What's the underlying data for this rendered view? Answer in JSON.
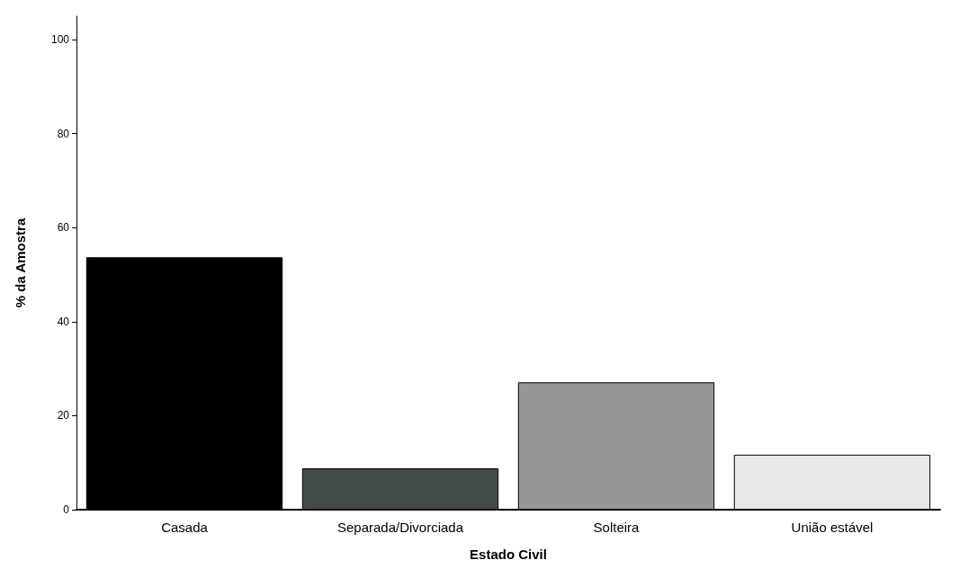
{
  "chart_data": {
    "type": "bar",
    "xlabel": "Estado Civil",
    "ylabel": "% da Amostra",
    "categories": [
      "Casada",
      "Separada/Divorciada",
      "Solteira",
      "União estável"
    ],
    "values": [
      53.7,
      8.8,
      27.1,
      11.7
    ],
    "colors": [
      "#000000",
      "#434a4a",
      "#969696",
      "#e8e8e8"
    ],
    "ylim": [
      0,
      105
    ],
    "yticks": [
      0,
      20,
      40,
      60,
      80,
      100
    ],
    "grid": false
  }
}
